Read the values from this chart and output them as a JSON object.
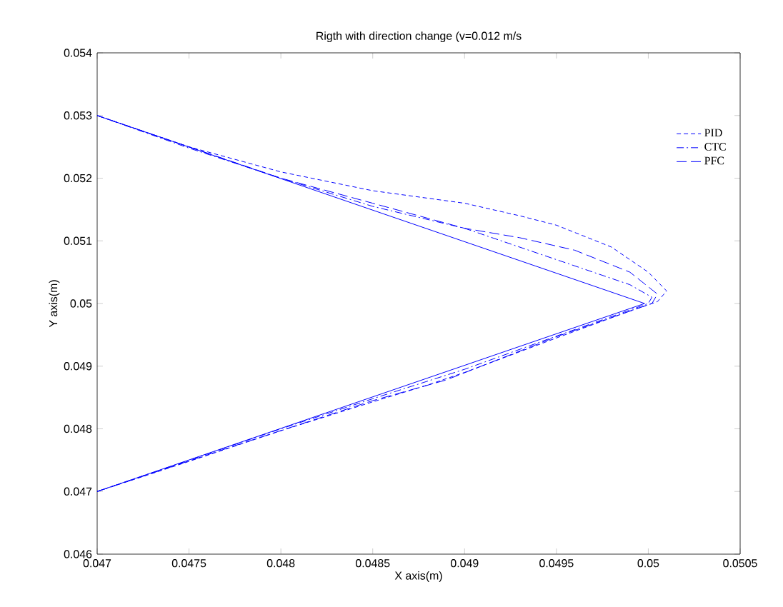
{
  "chart_data": {
    "type": "line",
    "title": "Rigth with direction change (v=0.012 m/s",
    "xlabel": "X axis(m)",
    "ylabel": "Y axis(m)",
    "xlim": [
      0.047,
      0.0505
    ],
    "ylim": [
      0.046,
      0.054
    ],
    "xticks": [
      0.047,
      0.0475,
      0.048,
      0.0485,
      0.049,
      0.0495,
      0.05,
      0.0505
    ],
    "yticks": [
      0.046,
      0.047,
      0.048,
      0.049,
      0.05,
      0.051,
      0.052,
      0.053,
      0.054
    ],
    "grid": false,
    "legend": "top right",
    "marker": "none",
    "series": [
      {
        "color": "#0000ff",
        "line_style": "solid",
        "x": [
          0.047,
          0.04998,
          0.047
        ],
        "values": [
          0.047,
          0.05,
          0.053
        ]
      },
      {
        "name": "PID",
        "color": "#0000ff",
        "line_style": "dashed",
        "x": [
          0.047,
          0.0475,
          0.048,
          0.0485,
          0.0488,
          0.049,
          0.0495,
          0.0499,
          0.05005,
          0.0501,
          0.05,
          0.0498,
          0.0495,
          0.0493,
          0.049,
          0.0485,
          0.048,
          0.0475,
          0.047
        ],
        "values": [
          0.047,
          0.04748,
          0.04797,
          0.04843,
          0.0487,
          0.0489,
          0.04945,
          0.04988,
          0.05003,
          0.0502,
          0.0505,
          0.0509,
          0.05125,
          0.0514,
          0.0516,
          0.0518,
          0.0521,
          0.0525,
          0.053
        ]
      },
      {
        "name": "CTC",
        "color": "#0000ff",
        "line_style": "dashdot",
        "x": [
          0.047,
          0.048,
          0.0485,
          0.049,
          0.0495,
          0.05,
          0.05002,
          0.0499,
          0.0495,
          0.049,
          0.0485,
          0.048,
          0.0475,
          0.047
        ],
        "values": [
          0.047,
          0.048,
          0.04848,
          0.04895,
          0.04948,
          0.05,
          0.0501,
          0.0503,
          0.0507,
          0.0512,
          0.05155,
          0.052,
          0.05248,
          0.053
        ]
      },
      {
        "name": "PFC",
        "color": "#0000ff",
        "line_style": "longdash",
        "x": [
          0.047,
          0.0478,
          0.0485,
          0.0489,
          0.0495,
          0.05002,
          0.05005,
          0.0499,
          0.0496,
          0.0493,
          0.049,
          0.0485,
          0.048,
          0.0475,
          0.047
        ],
        "values": [
          0.047,
          0.04778,
          0.04845,
          0.04878,
          0.04947,
          0.05,
          0.05015,
          0.0505,
          0.05085,
          0.05105,
          0.0512,
          0.0516,
          0.052,
          0.0525,
          0.053
        ]
      }
    ]
  }
}
